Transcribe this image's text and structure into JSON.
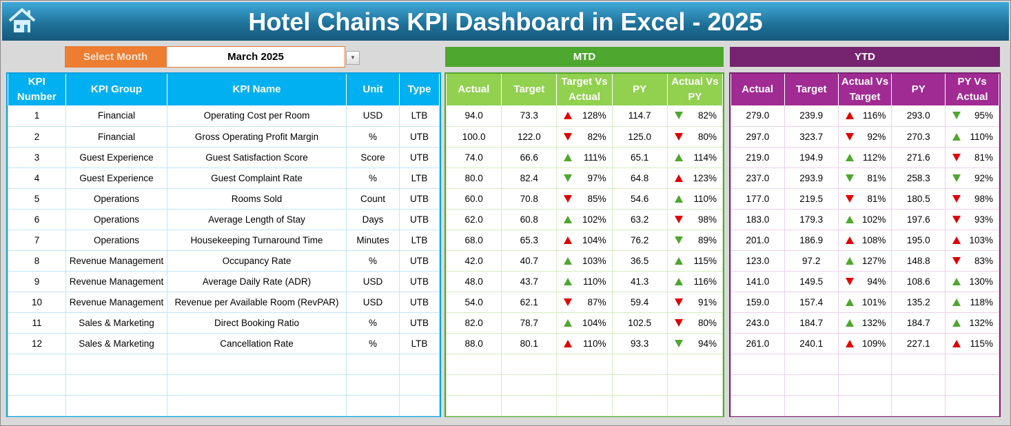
{
  "title": "Hotel Chains KPI Dashboard in Excel - 2025",
  "icons": {
    "home": "home-icon",
    "dropdown": "chevron-down-icon",
    "up": "triangle-up-icon",
    "down": "triangle-down-icon"
  },
  "colors": {
    "title_bar": "#2a86b5",
    "select_label": "#ed7d31",
    "kpi_header": "#00b0f0",
    "mtd_band": "#4ea72e",
    "mtd_header": "#92d050",
    "ytd_band": "#76246f",
    "ytd_header": "#a02b93",
    "arrow_red": "#e00000",
    "arrow_green": "#4ea72e"
  },
  "selector": {
    "label": "Select Month",
    "value": "March 2025"
  },
  "mtd_label": "MTD",
  "ytd_label": "YTD",
  "kpi_headers": [
    "KPI Number",
    "KPI Group",
    "KPI Name",
    "Unit",
    "Type"
  ],
  "mtd_headers": [
    "Actual",
    "Target",
    "Target Vs Actual",
    "PY",
    "Actual Vs PY"
  ],
  "ytd_headers": [
    "Actual",
    "Target",
    "Actual Vs Target",
    "PY",
    "PY Vs Actual"
  ],
  "rows": [
    {
      "num": "1",
      "group": "Financial",
      "name": "Operating Cost per Room",
      "unit": "USD",
      "type": "LTB",
      "mtd": {
        "actual": "94.0",
        "target": "73.3",
        "tva": {
          "v": "128%",
          "dir": "up",
          "color": "red"
        },
        "py": "114.7",
        "avp": {
          "v": "82%",
          "dir": "down",
          "color": "green"
        }
      },
      "ytd": {
        "actual": "279.0",
        "target": "239.9",
        "avt": {
          "v": "116%",
          "dir": "up",
          "color": "red"
        },
        "py": "293.0",
        "pva": {
          "v": "95%",
          "dir": "down",
          "color": "green"
        }
      }
    },
    {
      "num": "2",
      "group": "Financial",
      "name": "Gross Operating Profit Margin",
      "unit": "%",
      "type": "UTB",
      "mtd": {
        "actual": "100.0",
        "target": "122.0",
        "tva": {
          "v": "82%",
          "dir": "down",
          "color": "red"
        },
        "py": "125.0",
        "avp": {
          "v": "80%",
          "dir": "down",
          "color": "red"
        }
      },
      "ytd": {
        "actual": "297.0",
        "target": "323.7",
        "avt": {
          "v": "92%",
          "dir": "down",
          "color": "red"
        },
        "py": "270.3",
        "pva": {
          "v": "110%",
          "dir": "up",
          "color": "green"
        }
      }
    },
    {
      "num": "3",
      "group": "Guest Experience",
      "name": "Guest Satisfaction Score",
      "unit": "Score",
      "type": "UTB",
      "mtd": {
        "actual": "74.0",
        "target": "66.6",
        "tva": {
          "v": "111%",
          "dir": "up",
          "color": "green"
        },
        "py": "65.1",
        "avp": {
          "v": "114%",
          "dir": "up",
          "color": "green"
        }
      },
      "ytd": {
        "actual": "219.0",
        "target": "194.9",
        "avt": {
          "v": "112%",
          "dir": "up",
          "color": "green"
        },
        "py": "271.6",
        "pva": {
          "v": "81%",
          "dir": "down",
          "color": "red"
        }
      }
    },
    {
      "num": "4",
      "group": "Guest Experience",
      "name": "Guest Complaint Rate",
      "unit": "%",
      "type": "LTB",
      "mtd": {
        "actual": "80.0",
        "target": "82.4",
        "tva": {
          "v": "97%",
          "dir": "down",
          "color": "green"
        },
        "py": "64.8",
        "avp": {
          "v": "123%",
          "dir": "up",
          "color": "red"
        }
      },
      "ytd": {
        "actual": "237.0",
        "target": "293.9",
        "avt": {
          "v": "81%",
          "dir": "down",
          "color": "green"
        },
        "py": "258.3",
        "pva": {
          "v": "92%",
          "dir": "down",
          "color": "green"
        }
      }
    },
    {
      "num": "5",
      "group": "Operations",
      "name": "Rooms Sold",
      "unit": "Count",
      "type": "UTB",
      "mtd": {
        "actual": "60.0",
        "target": "70.8",
        "tva": {
          "v": "85%",
          "dir": "down",
          "color": "red"
        },
        "py": "54.6",
        "avp": {
          "v": "110%",
          "dir": "up",
          "color": "green"
        }
      },
      "ytd": {
        "actual": "177.0",
        "target": "219.5",
        "avt": {
          "v": "81%",
          "dir": "down",
          "color": "red"
        },
        "py": "180.5",
        "pva": {
          "v": "98%",
          "dir": "down",
          "color": "red"
        }
      }
    },
    {
      "num": "6",
      "group": "Operations",
      "name": "Average Length of Stay",
      "unit": "Days",
      "type": "UTB",
      "mtd": {
        "actual": "62.0",
        "target": "60.8",
        "tva": {
          "v": "102%",
          "dir": "up",
          "color": "green"
        },
        "py": "63.2",
        "avp": {
          "v": "98%",
          "dir": "down",
          "color": "red"
        }
      },
      "ytd": {
        "actual": "183.0",
        "target": "179.3",
        "avt": {
          "v": "102%",
          "dir": "up",
          "color": "green"
        },
        "py": "197.6",
        "pva": {
          "v": "93%",
          "dir": "down",
          "color": "red"
        }
      }
    },
    {
      "num": "7",
      "group": "Operations",
      "name": "Housekeeping Turnaround Time",
      "unit": "Minutes",
      "type": "LTB",
      "mtd": {
        "actual": "68.0",
        "target": "65.3",
        "tva": {
          "v": "104%",
          "dir": "up",
          "color": "red"
        },
        "py": "76.2",
        "avp": {
          "v": "89%",
          "dir": "down",
          "color": "green"
        }
      },
      "ytd": {
        "actual": "201.0",
        "target": "186.9",
        "avt": {
          "v": "108%",
          "dir": "up",
          "color": "red"
        },
        "py": "195.0",
        "pva": {
          "v": "103%",
          "dir": "up",
          "color": "red"
        }
      }
    },
    {
      "num": "8",
      "group": "Revenue Management",
      "name": "Occupancy Rate",
      "unit": "%",
      "type": "UTB",
      "mtd": {
        "actual": "42.0",
        "target": "40.7",
        "tva": {
          "v": "103%",
          "dir": "up",
          "color": "green"
        },
        "py": "36.5",
        "avp": {
          "v": "115%",
          "dir": "up",
          "color": "green"
        }
      },
      "ytd": {
        "actual": "123.0",
        "target": "97.2",
        "avt": {
          "v": "127%",
          "dir": "up",
          "color": "green"
        },
        "py": "148.8",
        "pva": {
          "v": "83%",
          "dir": "down",
          "color": "red"
        }
      }
    },
    {
      "num": "9",
      "group": "Revenue Management",
      "name": "Average Daily Rate (ADR)",
      "unit": "USD",
      "type": "UTB",
      "mtd": {
        "actual": "48.0",
        "target": "43.7",
        "tva": {
          "v": "110%",
          "dir": "up",
          "color": "green"
        },
        "py": "41.3",
        "avp": {
          "v": "116%",
          "dir": "up",
          "color": "green"
        }
      },
      "ytd": {
        "actual": "141.0",
        "target": "149.5",
        "avt": {
          "v": "94%",
          "dir": "down",
          "color": "red"
        },
        "py": "108.6",
        "pva": {
          "v": "130%",
          "dir": "up",
          "color": "green"
        }
      }
    },
    {
      "num": "10",
      "group": "Revenue Management",
      "name": "Revenue per Available Room (RevPAR)",
      "unit": "USD",
      "type": "UTB",
      "mtd": {
        "actual": "54.0",
        "target": "62.1",
        "tva": {
          "v": "87%",
          "dir": "down",
          "color": "red"
        },
        "py": "59.4",
        "avp": {
          "v": "91%",
          "dir": "down",
          "color": "red"
        }
      },
      "ytd": {
        "actual": "159.0",
        "target": "157.4",
        "avt": {
          "v": "101%",
          "dir": "up",
          "color": "green"
        },
        "py": "135.2",
        "pva": {
          "v": "118%",
          "dir": "up",
          "color": "green"
        }
      }
    },
    {
      "num": "11",
      "group": "Sales & Marketing",
      "name": "Direct Booking Ratio",
      "unit": "%",
      "type": "UTB",
      "mtd": {
        "actual": "82.0",
        "target": "78.7",
        "tva": {
          "v": "104%",
          "dir": "up",
          "color": "green"
        },
        "py": "102.5",
        "avp": {
          "v": "80%",
          "dir": "down",
          "color": "red"
        }
      },
      "ytd": {
        "actual": "243.0",
        "target": "184.7",
        "avt": {
          "v": "132%",
          "dir": "up",
          "color": "green"
        },
        "py": "184.7",
        "pva": {
          "v": "132%",
          "dir": "up",
          "color": "green"
        }
      }
    },
    {
      "num": "12",
      "group": "Sales & Marketing",
      "name": "Cancellation Rate",
      "unit": "%",
      "type": "LTB",
      "mtd": {
        "actual": "88.0",
        "target": "80.1",
        "tva": {
          "v": "110%",
          "dir": "up",
          "color": "red"
        },
        "py": "93.3",
        "avp": {
          "v": "94%",
          "dir": "down",
          "color": "green"
        }
      },
      "ytd": {
        "actual": "261.0",
        "target": "240.1",
        "avt": {
          "v": "109%",
          "dir": "up",
          "color": "red"
        },
        "py": "227.1",
        "pva": {
          "v": "115%",
          "dir": "up",
          "color": "red"
        }
      }
    }
  ]
}
